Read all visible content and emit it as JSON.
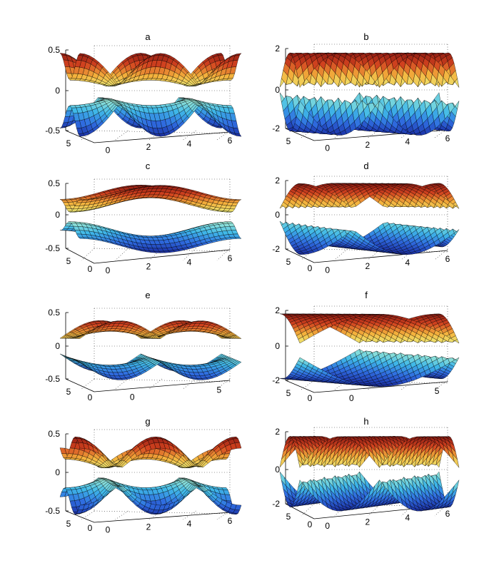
{
  "colormap": [
    "#1a2ea3",
    "#2f6ce0",
    "#3fb8e8",
    "#a6eed4",
    "#eef07a",
    "#f4b13c",
    "#d2421f",
    "#8c1a12"
  ],
  "chart_data": [
    {
      "type": "surface",
      "id": "a",
      "title": "a",
      "z_ticks": [
        "0.5",
        "0",
        "-0.5"
      ],
      "x_ticks": [
        "0",
        "2",
        "4",
        "6"
      ],
      "y_ticks": [
        "5"
      ],
      "zlim": [
        -0.5,
        0.5
      ],
      "xlim": [
        0,
        6.28
      ],
      "ylim": [
        0,
        6.28
      ],
      "bands": 2,
      "grid": true
    },
    {
      "type": "surface",
      "id": "b",
      "title": "b",
      "z_ticks": [
        "2",
        "0",
        "-2"
      ],
      "x_ticks": [
        "0",
        "2",
        "4",
        "6"
      ],
      "y_ticks": [
        "5"
      ],
      "zlim": [
        -2,
        2
      ],
      "xlim": [
        0,
        6.28
      ],
      "ylim": [
        0,
        6.28
      ],
      "bands": 2,
      "grid": true
    },
    {
      "type": "surface",
      "id": "c",
      "title": "c",
      "z_ticks": [
        "0.5",
        "0",
        "-0.5"
      ],
      "x_ticks": [
        "0",
        "2",
        "4",
        "6"
      ],
      "y_ticks": [
        "5",
        "0"
      ],
      "zlim": [
        -0.5,
        0.5
      ],
      "xlim": [
        0,
        6.28
      ],
      "ylim": [
        0,
        6.28
      ],
      "bands": 2,
      "grid": true
    },
    {
      "type": "surface",
      "id": "d",
      "title": "d",
      "z_ticks": [
        "2",
        "0",
        "-2"
      ],
      "x_ticks": [
        "0",
        "2",
        "4",
        "6"
      ],
      "y_ticks": [
        "5",
        "0"
      ],
      "zlim": [
        -2,
        2
      ],
      "xlim": [
        0,
        6.28
      ],
      "ylim": [
        0,
        6.28
      ],
      "bands": 2,
      "grid": true
    },
    {
      "type": "surface",
      "id": "e",
      "title": "e",
      "z_ticks": [
        "0.5",
        "0",
        "-0.5"
      ],
      "x_ticks": [
        "0",
        "5"
      ],
      "y_ticks": [
        "5",
        "0"
      ],
      "zlim": [
        -0.5,
        0.5
      ],
      "xlim": [
        0,
        6.28
      ],
      "ylim": [
        0,
        6.28
      ],
      "bands": 2,
      "grid": true
    },
    {
      "type": "surface",
      "id": "f",
      "title": "f",
      "z_ticks": [
        "2",
        "0",
        "-2"
      ],
      "x_ticks": [
        "0",
        "5"
      ],
      "y_ticks": [
        "5",
        "0"
      ],
      "zlim": [
        -2,
        2
      ],
      "xlim": [
        0,
        6.28
      ],
      "ylim": [
        0,
        6.28
      ],
      "bands": 2,
      "grid": true
    },
    {
      "type": "surface",
      "id": "g",
      "title": "g",
      "z_ticks": [
        "0.5",
        "0",
        "-0.5"
      ],
      "x_ticks": [
        "0",
        "2",
        "4",
        "6"
      ],
      "y_ticks": [
        "5",
        "0"
      ],
      "zlim": [
        -0.5,
        0.5
      ],
      "xlim": [
        0,
        6.28
      ],
      "ylim": [
        0,
        6.28
      ],
      "bands": 2,
      "grid": true
    },
    {
      "type": "surface",
      "id": "h",
      "title": "h",
      "z_ticks": [
        "2",
        "0",
        "-2"
      ],
      "x_ticks": [
        "0",
        "2",
        "4",
        "6"
      ],
      "y_ticks": [
        "5",
        "0"
      ],
      "zlim": [
        -2,
        2
      ],
      "xlim": [
        0,
        6.28
      ],
      "ylim": [
        0,
        6.28
      ],
      "bands": 2,
      "grid": true
    }
  ]
}
